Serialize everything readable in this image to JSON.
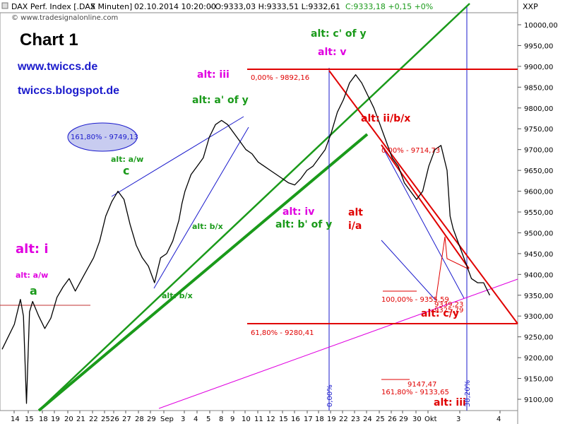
{
  "header": {
    "instrument": "DAX Perf. Index [.DAX",
    "interval": "5 Minuten]",
    "datetime": "02.10.2014 10:20:00",
    "ohl": "- O:9333,03 H:9333,51 L:9332,61",
    "close_change": "C:9333,18 +0,15 +0%",
    "source": "© www.tradesignalonline.com",
    "symbol": "XXP"
  },
  "overlay": {
    "title": "Chart 1",
    "link1": "www.twiccs.de",
    "link2": "twiccs.blogspot.de"
  },
  "colors": {
    "price": "#000000",
    "blue_lines": "#1a1acc",
    "green_lines": "#1a9a1a",
    "red_lines": "#e00000",
    "magenta": "#e000e0",
    "title": "#000000",
    "links": "#1a1acc"
  },
  "chart_data": {
    "type": "line",
    "title": "DAX Perf. Index [.DAX 5 Minuten]",
    "xlabel": "",
    "ylabel": "",
    "y_ticks": [
      9100,
      9150,
      9200,
      9250,
      9300,
      9350,
      9400,
      9450,
      9500,
      9550,
      9600,
      9650,
      9700,
      9750,
      9800,
      9850,
      9900,
      9950,
      10000
    ],
    "y_tick_labels": [
      "9100,00",
      "9150,00",
      "9200,00",
      "9250,00",
      "9300,00",
      "9350,00",
      "9400,00",
      "9450,00",
      "9500,00",
      "9550,00",
      "9600,00",
      "9650,00",
      "9700,00",
      "9750,00",
      "9800,00",
      "9850,00",
      "9900,00",
      "9950,00",
      "10000,00"
    ],
    "ylim": [
      9080,
      10050
    ],
    "grid": false,
    "x_ticks": [
      "14",
      "15",
      "18",
      "19",
      "20",
      "21",
      "22",
      "25",
      "26",
      "27",
      "28",
      "29",
      "Sep",
      "3",
      "4",
      "5",
      "8",
      "9",
      "10",
      "11",
      "12",
      "15",
      "16",
      "17",
      "18",
      "19",
      "22",
      "23",
      "24",
      "25",
      "26",
      "29",
      "30",
      "Okt",
      "3",
      "4"
    ],
    "series": [
      {
        "x": [
          0,
          2,
          4,
          6,
          7,
          8,
          9,
          10,
          12,
          14,
          16,
          18,
          20,
          22,
          24,
          27,
          30,
          32,
          34,
          36,
          38,
          40,
          42,
          44,
          46,
          48,
          50,
          52,
          54,
          56,
          58,
          59,
          60,
          61,
          62,
          64,
          66,
          68,
          70,
          72,
          74,
          76,
          78,
          80,
          82,
          84,
          86,
          88,
          90,
          92,
          94,
          96,
          98,
          100,
          102,
          104,
          106,
          108,
          110,
          112,
          114,
          116,
          118,
          120,
          122,
          124,
          126,
          128,
          130,
          132,
          134,
          136,
          138,
          140,
          142,
          144,
          146,
          147,
          148,
          150,
          152,
          154,
          156,
          158,
          160
        ],
        "values": [
          9220,
          9250,
          9280,
          9340,
          9300,
          9090,
          9310,
          9335,
          9300,
          9270,
          9295,
          9345,
          9370,
          9390,
          9360,
          9400,
          9440,
          9480,
          9540,
          9575,
          9600,
          9580,
          9520,
          9470,
          9440,
          9420,
          9380,
          9440,
          9450,
          9480,
          9530,
          9570,
          9600,
          9620,
          9640,
          9660,
          9680,
          9730,
          9760,
          9770,
          9760,
          9740,
          9720,
          9700,
          9690,
          9670,
          9660,
          9650,
          9640,
          9630,
          9620,
          9615,
          9630,
          9650,
          9660,
          9680,
          9700,
          9740,
          9790,
          9820,
          9860,
          9880,
          9860,
          9830,
          9800,
          9760,
          9720,
          9680,
          9660,
          9620,
          9600,
          9580,
          9600,
          9660,
          9700,
          9710,
          9650,
          9540,
          9510,
          9470,
          9430,
          9390,
          9380,
          9380,
          9350
        ]
      }
    ]
  },
  "annotations": [
    {
      "text": "alt: i",
      "color": "#e000e0",
      "size": 18
    },
    {
      "text": "alt: a/w",
      "color": "#e000e0",
      "size": 11
    },
    {
      "text": "a",
      "color": "#1a9a1a",
      "size": 16
    },
    {
      "text": "alt: iii",
      "color": "#e000e0",
      "size": 14
    },
    {
      "text": "alt: a' of y",
      "color": "#1a9a1a",
      "size": 14
    },
    {
      "text": "alt: a/w",
      "color": "#1a9a1a",
      "size": 11
    },
    {
      "text": "c",
      "color": "#1a9a1a",
      "size": 16
    },
    {
      "text": "alt: b/x",
      "color": "#1a9a1a",
      "size": 11
    },
    {
      "text": "alt: b/x",
      "color": "#1a9a1a",
      "size": 11
    },
    {
      "text": "alt: c' of y",
      "color": "#1a9a1a",
      "size": 14
    },
    {
      "text": "alt: v",
      "color": "#e000e0",
      "size": 14
    },
    {
      "text": "alt: ii/b/x",
      "color": "#e00000",
      "size": 14
    },
    {
      "text": "alt: iv",
      "color": "#e000e0",
      "size": 14
    },
    {
      "text": "alt: b' of y",
      "color": "#1a9a1a",
      "size": 14
    },
    {
      "text": "alt",
      "color": "#e00000",
      "size": 14
    },
    {
      "text": "i/a",
      "color": "#e00000",
      "size": 14
    },
    {
      "text": "alt: c/y",
      "color": "#e00000",
      "size": 14
    },
    {
      "text": "alt: iii",
      "color": "#e00000",
      "size": 14
    }
  ],
  "fib_labels": [
    {
      "text": "161,80% - 9749,13",
      "color": "#1a1acc"
    },
    {
      "text": "0,00% - 9892,16",
      "color": "#e00000"
    },
    {
      "text": "0,00% - 9714,73",
      "color": "#e00000"
    },
    {
      "text": "100,00% - 9355,59",
      "color": "#e00000"
    },
    {
      "text": "9339,23",
      "color": "#e00000"
    },
    {
      "text": "9325,79",
      "color": "#e00000"
    },
    {
      "text": "61,80% - 9280,41",
      "color": "#e00000"
    },
    {
      "text": "9147,47",
      "color": "#e00000"
    },
    {
      "text": "161,80% - 9133,65",
      "color": "#e00000"
    },
    {
      "text": "0,00%",
      "color": "#1a1acc"
    },
    {
      "text": "38,20%",
      "color": "#1a1acc"
    }
  ]
}
